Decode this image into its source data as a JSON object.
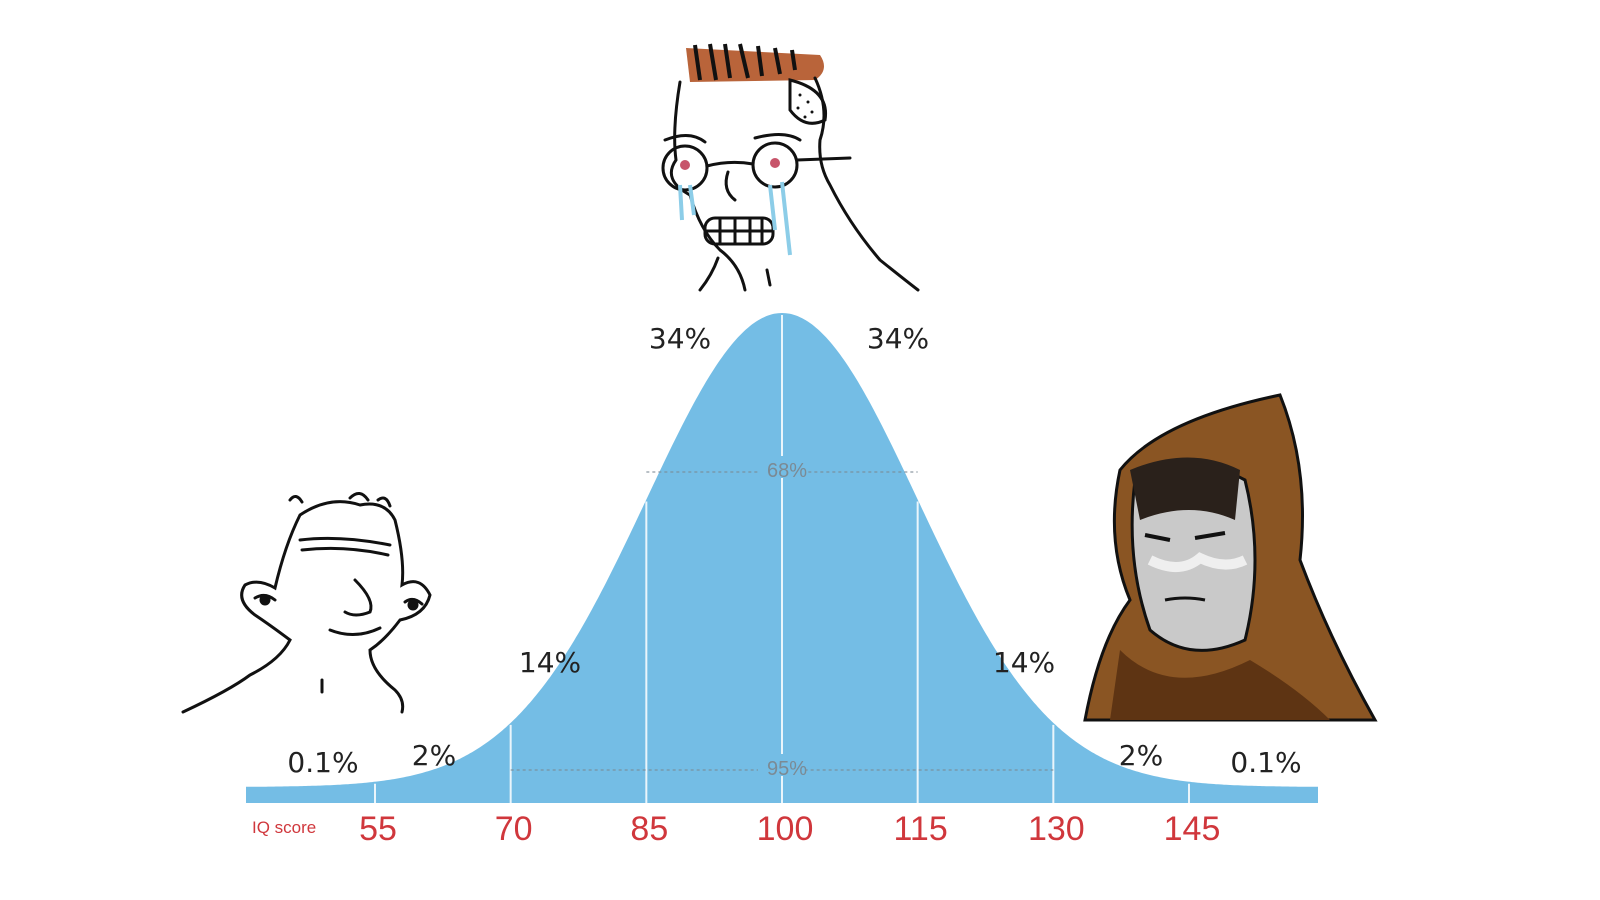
{
  "chart_data": {
    "type": "area",
    "title": "",
    "xlabel": "IQ score",
    "ylabel": "",
    "distribution": {
      "mean": 100,
      "sd": 15
    },
    "x_ticks": [
      55,
      70,
      85,
      100,
      115,
      130,
      145
    ],
    "xlim": [
      40,
      160
    ],
    "color": "#74bde5",
    "tick_color": "#d0373c",
    "segments": [
      {
        "range": "<55",
        "label": "0.1%"
      },
      {
        "range": "55-70",
        "label": "2%"
      },
      {
        "range": "70-85",
        "label": "14%"
      },
      {
        "range": "85-100",
        "label": "34%"
      },
      {
        "range": "100-115",
        "label": "34%"
      },
      {
        "range": "115-130",
        "label": "14%"
      },
      {
        "range": "130-145",
        "label": "2%"
      },
      {
        "range": ">145",
        "label": "0.1%"
      }
    ],
    "bands": [
      {
        "range": [
          85,
          115
        ],
        "label": "68%"
      },
      {
        "range": [
          70,
          130
        ],
        "label": "95%"
      }
    ],
    "grid": false,
    "legend": "none"
  },
  "characters": [
    {
      "name": "low-iq-wojak",
      "position": "left"
    },
    {
      "name": "crying-midwit-wojak",
      "position": "center"
    },
    {
      "name": "hooded-high-iq-figure",
      "position": "right"
    }
  ]
}
